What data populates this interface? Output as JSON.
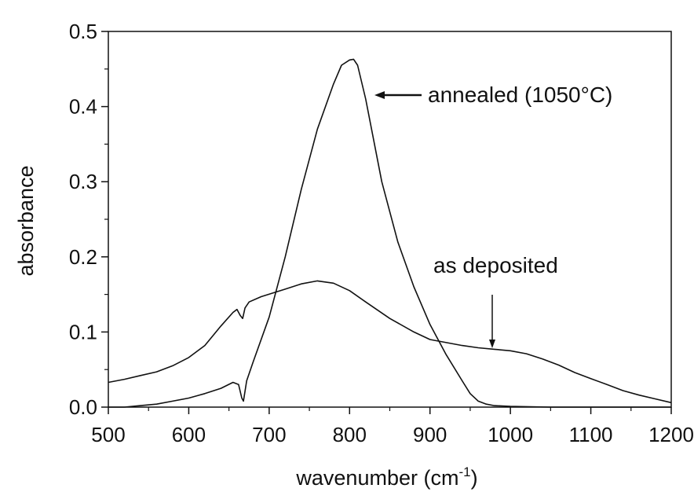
{
  "chart_data": {
    "type": "line",
    "xlabel": "wavenumber (cm",
    "xlabel_sup": "-1",
    "xlabel_close": ")",
    "ylabel": "absorbance",
    "xlim": [
      500,
      1200
    ],
    "ylim": [
      0,
      0.5
    ],
    "xticks": [
      "500",
      "600",
      "700",
      "800",
      "900",
      "1000",
      "1100",
      "1200"
    ],
    "yticks": [
      "0.0",
      "0.1",
      "0.2",
      "0.3",
      "0.4",
      "0.5"
    ],
    "grid": false,
    "annotations": {
      "annealed": "annealed (1050°C)",
      "as_deposited": "as deposited"
    },
    "series": [
      {
        "name": "annealed (1050°C)",
        "x": [
          500,
          520,
          540,
          560,
          580,
          600,
          620,
          640,
          655,
          662,
          666,
          668,
          672,
          680,
          700,
          720,
          740,
          760,
          780,
          790,
          800,
          805,
          810,
          820,
          840,
          860,
          880,
          900,
          920,
          940,
          950,
          960,
          970,
          980,
          1000,
          1050,
          1100,
          1150,
          1200
        ],
        "y": [
          0.0,
          0.0,
          0.002,
          0.004,
          0.008,
          0.012,
          0.018,
          0.025,
          0.033,
          0.03,
          0.012,
          0.008,
          0.035,
          0.06,
          0.12,
          0.2,
          0.29,
          0.37,
          0.43,
          0.455,
          0.462,
          0.463,
          0.455,
          0.41,
          0.3,
          0.22,
          0.16,
          0.11,
          0.07,
          0.035,
          0.018,
          0.008,
          0.004,
          0.002,
          0.001,
          0.0,
          0.0,
          0.0,
          0.0
        ]
      },
      {
        "name": "as deposited",
        "x": [
          500,
          520,
          540,
          560,
          580,
          600,
          620,
          640,
          655,
          660,
          664,
          667,
          670,
          675,
          690,
          720,
          740,
          760,
          780,
          800,
          820,
          850,
          880,
          900,
          940,
          960,
          980,
          1000,
          1020,
          1040,
          1060,
          1080,
          1100,
          1120,
          1140,
          1160,
          1180,
          1200
        ],
        "y": [
          0.033,
          0.037,
          0.042,
          0.047,
          0.055,
          0.066,
          0.082,
          0.108,
          0.126,
          0.13,
          0.122,
          0.118,
          0.132,
          0.14,
          0.147,
          0.157,
          0.164,
          0.168,
          0.165,
          0.155,
          0.14,
          0.118,
          0.1,
          0.09,
          0.082,
          0.079,
          0.077,
          0.075,
          0.071,
          0.064,
          0.056,
          0.046,
          0.038,
          0.03,
          0.022,
          0.016,
          0.011,
          0.006
        ]
      }
    ]
  }
}
